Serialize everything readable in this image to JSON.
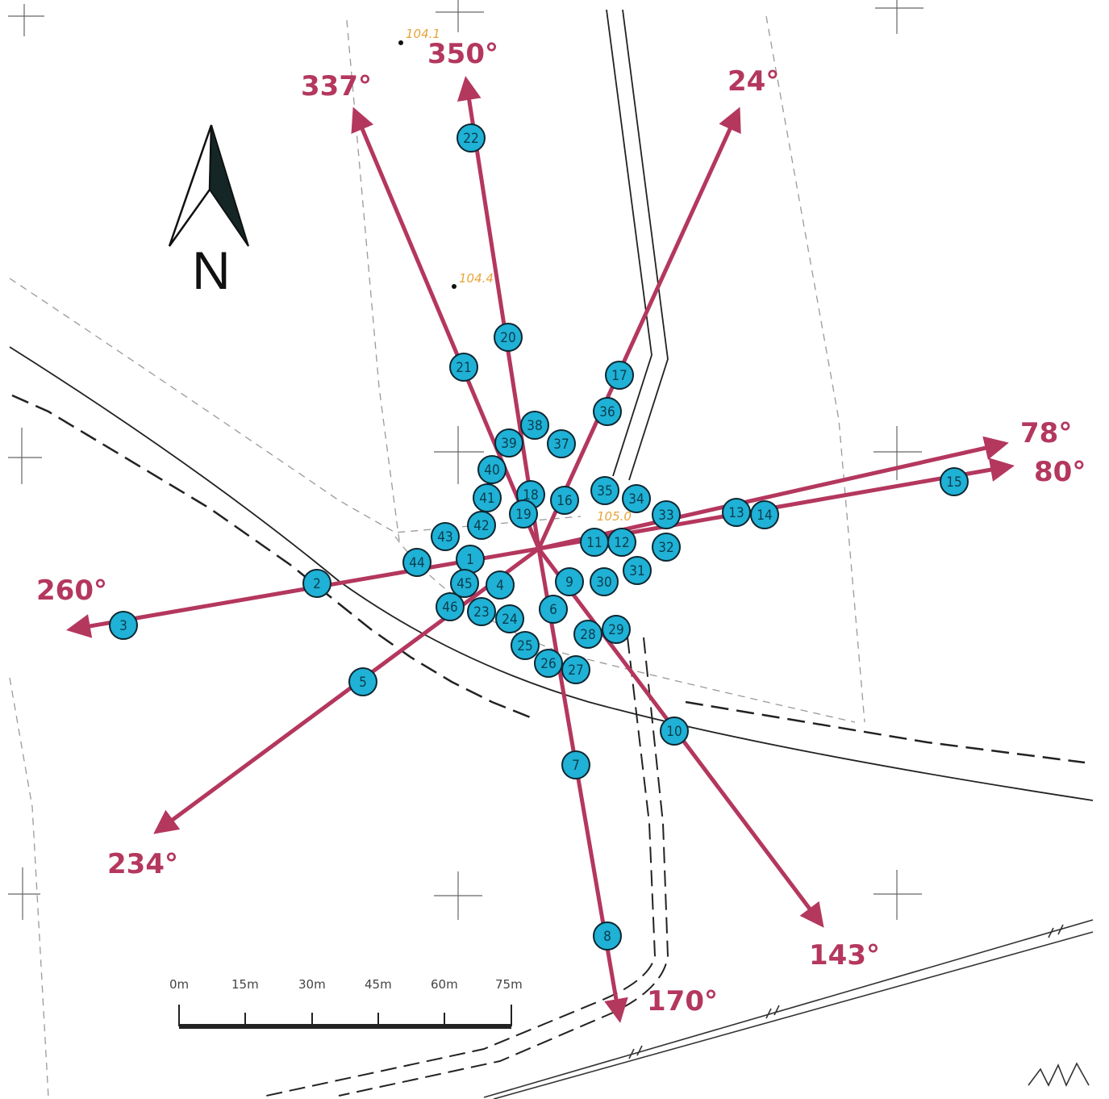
{
  "colors": {
    "arrow": "#b4375e",
    "point_fill": "#1fb1d6",
    "point_stroke": "#0d2630",
    "map_line": "#222222",
    "map_dash": "#9a9a9a"
  },
  "north_arrow": {
    "label": "N"
  },
  "elevations": [
    "104.1",
    "104.4",
    "105.0"
  ],
  "scale_bar": {
    "ticks": [
      "0m",
      "15m",
      "30m",
      "45m",
      "60m",
      "75m"
    ]
  },
  "directions": [
    {
      "label": "337°",
      "bearing": 337
    },
    {
      "label": "350°",
      "bearing": 350
    },
    {
      "label": "24°",
      "bearing": 24
    },
    {
      "label": "78°",
      "bearing": 78
    },
    {
      "label": "80°",
      "bearing": 80
    },
    {
      "label": "143°",
      "bearing": 143
    },
    {
      "label": "170°",
      "bearing": 170
    },
    {
      "label": "234°",
      "bearing": 234
    },
    {
      "label": "260°",
      "bearing": 260
    }
  ],
  "points": [
    "1",
    "2",
    "3",
    "4",
    "5",
    "6",
    "7",
    "8",
    "9",
    "10",
    "11",
    "12",
    "13",
    "14",
    "15",
    "16",
    "17",
    "18",
    "19",
    "20",
    "21",
    "22",
    "23",
    "24",
    "25",
    "26",
    "27",
    "28",
    "29",
    "30",
    "31",
    "32",
    "33",
    "34",
    "35",
    "36",
    "37",
    "38",
    "39",
    "40",
    "41",
    "42",
    "43",
    "44",
    "45",
    "46"
  ]
}
